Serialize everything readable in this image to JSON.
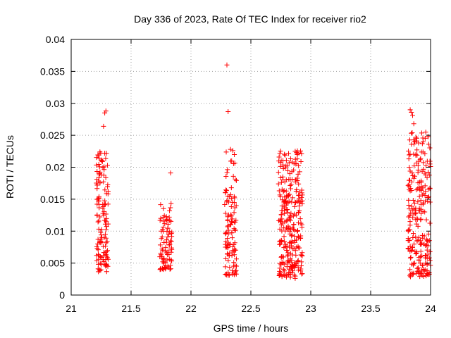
{
  "chart_data": {
    "type": "scatter",
    "title": "Day 336 of 2023, Rate Of TEC Index for receiver rio2",
    "xlabel": "GPS time / hours",
    "ylabel": "ROTI / TECUs",
    "xlim": [
      21,
      24
    ],
    "ylim": [
      0,
      0.04
    ],
    "xticks": [
      21,
      21.5,
      22,
      22.5,
      23,
      23.5,
      24
    ],
    "xtick_labels": [
      "21",
      "21.5",
      "22",
      "22.5",
      "23",
      "23.5",
      "24"
    ],
    "yticks": [
      0,
      0.005,
      0.01,
      0.015,
      0.02,
      0.025,
      0.03,
      0.035,
      0.04
    ],
    "ytick_labels": [
      "0",
      "0.005",
      "0.01",
      "0.015",
      "0.02",
      "0.025",
      "0.03",
      "0.035",
      "0.04"
    ],
    "grid": true,
    "marker": "+",
    "marker_color": "#ff0000",
    "clusters": [
      {
        "x_range": [
          21.21,
          21.31
        ],
        "y_range": [
          0.0035,
          0.0225
        ],
        "count": 130
      },
      {
        "x_range": [
          21.74,
          21.84
        ],
        "y_range": [
          0.004,
          0.0145
        ],
        "count": 85
      },
      {
        "x_range": [
          22.28,
          22.38
        ],
        "y_range": [
          0.003,
          0.023
        ],
        "count": 110
      },
      {
        "x_range": [
          22.73,
          22.93
        ],
        "y_range": [
          0.0028,
          0.0228
        ],
        "count": 280
      },
      {
        "x_range": [
          23.81,
          24.0
        ],
        "y_range": [
          0.0028,
          0.0255
        ],
        "count": 240
      }
    ],
    "points": [
      {
        "x": 21.28,
        "y": 0.0285
      },
      {
        "x": 21.29,
        "y": 0.0288
      },
      {
        "x": 21.27,
        "y": 0.0264
      },
      {
        "x": 21.83,
        "y": 0.0191
      },
      {
        "x": 22.3,
        "y": 0.036
      },
      {
        "x": 22.31,
        "y": 0.0287
      },
      {
        "x": 23.83,
        "y": 0.029
      },
      {
        "x": 23.84,
        "y": 0.0286
      },
      {
        "x": 23.85,
        "y": 0.0281
      },
      {
        "x": 23.86,
        "y": 0.0268
      },
      {
        "x": 23.84,
        "y": 0.0236
      },
      {
        "x": 22.87,
        "y": 0.0225
      },
      {
        "x": 22.89,
        "y": 0.0222
      },
      {
        "x": 21.23,
        "y": 0.0219
      },
      {
        "x": 21.24,
        "y": 0.0224
      },
      {
        "x": 22.33,
        "y": 0.0228
      },
      {
        "x": 22.35,
        "y": 0.0226
      },
      {
        "x": 23.96,
        "y": 0.0255
      },
      {
        "x": 23.98,
        "y": 0.0248
      },
      {
        "x": 22.83,
        "y": 0.0028
      },
      {
        "x": 22.87,
        "y": 0.0026
      },
      {
        "x": 21.24,
        "y": 0.0038
      },
      {
        "x": 21.79,
        "y": 0.0042
      },
      {
        "x": 22.32,
        "y": 0.0031
      },
      {
        "x": 23.91,
        "y": 0.0029
      }
    ]
  }
}
